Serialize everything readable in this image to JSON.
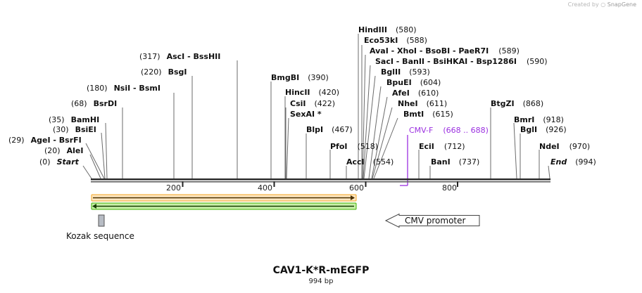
{
  "credit": {
    "prefix": "Created by",
    "brand": "SnapGene"
  },
  "plasmid": {
    "name": "CAV1-K*R-mEGFP",
    "length_label": "994 bp",
    "length": 994
  },
  "sites_left": [
    {
      "name": "Start",
      "pos": "(0)",
      "italic": true
    },
    {
      "name": "AleI",
      "pos": "(20)"
    },
    {
      "name": "AgeI  -  BsrFI",
      "pos": "(29)"
    },
    {
      "name": "BsiEI",
      "pos": "(30)"
    },
    {
      "name": "BamHI",
      "pos": "(35)"
    },
    {
      "name": "BsrDI",
      "pos": "(68)"
    },
    {
      "name": "NsiI  -  BsmI",
      "pos": "(180)"
    },
    {
      "name": "BsgI",
      "pos": "(220)"
    },
    {
      "name": "AscI  -  BssHII",
      "pos": "(317)"
    }
  ],
  "sites_right": [
    {
      "name": "BmgBI",
      "pos": "(390)"
    },
    {
      "name": "HincII",
      "pos": "(420)"
    },
    {
      "name": "CsiI",
      "pos": "(422)"
    },
    {
      "name": "SexAI *",
      "pos": ""
    },
    {
      "name": "BlpI",
      "pos": "(467)"
    },
    {
      "name": "PfoI",
      "pos": "(518)"
    },
    {
      "name": "AccI",
      "pos": "(554)"
    },
    {
      "name": "HindIII",
      "pos": "(580)"
    },
    {
      "name": "Eco53kI",
      "pos": "(588)"
    },
    {
      "name": "AvaI  -  XhoI  -  BsoBI  -  PaeR7I",
      "pos": "(589)"
    },
    {
      "name": "SacI  -  BanII  -  BsiHKAI  -  Bsp1286I",
      "pos": "(590)"
    },
    {
      "name": "BglII",
      "pos": "(593)"
    },
    {
      "name": "BpuEI",
      "pos": "(604)"
    },
    {
      "name": "AfeI",
      "pos": "(610)"
    },
    {
      "name": "NheI",
      "pos": "(611)"
    },
    {
      "name": "BmtI",
      "pos": "(615)"
    },
    {
      "name": "EciI",
      "pos": "(712)"
    },
    {
      "name": "BanI",
      "pos": "(737)"
    },
    {
      "name": "BtgZI",
      "pos": "(868)"
    },
    {
      "name": "BmrI",
      "pos": "(918)"
    },
    {
      "name": "BglI",
      "pos": "(926)"
    },
    {
      "name": "NdeI",
      "pos": "(970)"
    },
    {
      "name": "End",
      "pos": "(994)",
      "italic": true
    }
  ],
  "primer": {
    "name": "CMV-F",
    "range": "(668 .. 688)"
  },
  "ruler": {
    "ticks": [
      "200",
      "400",
      "600",
      "800"
    ],
    "tick_values": [
      200,
      400,
      600,
      800
    ]
  },
  "features": {
    "kozak": "Kozak sequence",
    "cmv": "CMV promoter",
    "orf_color": "#f5a623",
    "orf_fill": "#fde6c0",
    "green_color": "#3cb000",
    "green_fill": "#c8f0a8",
    "primer_color": "#9b30e0"
  }
}
